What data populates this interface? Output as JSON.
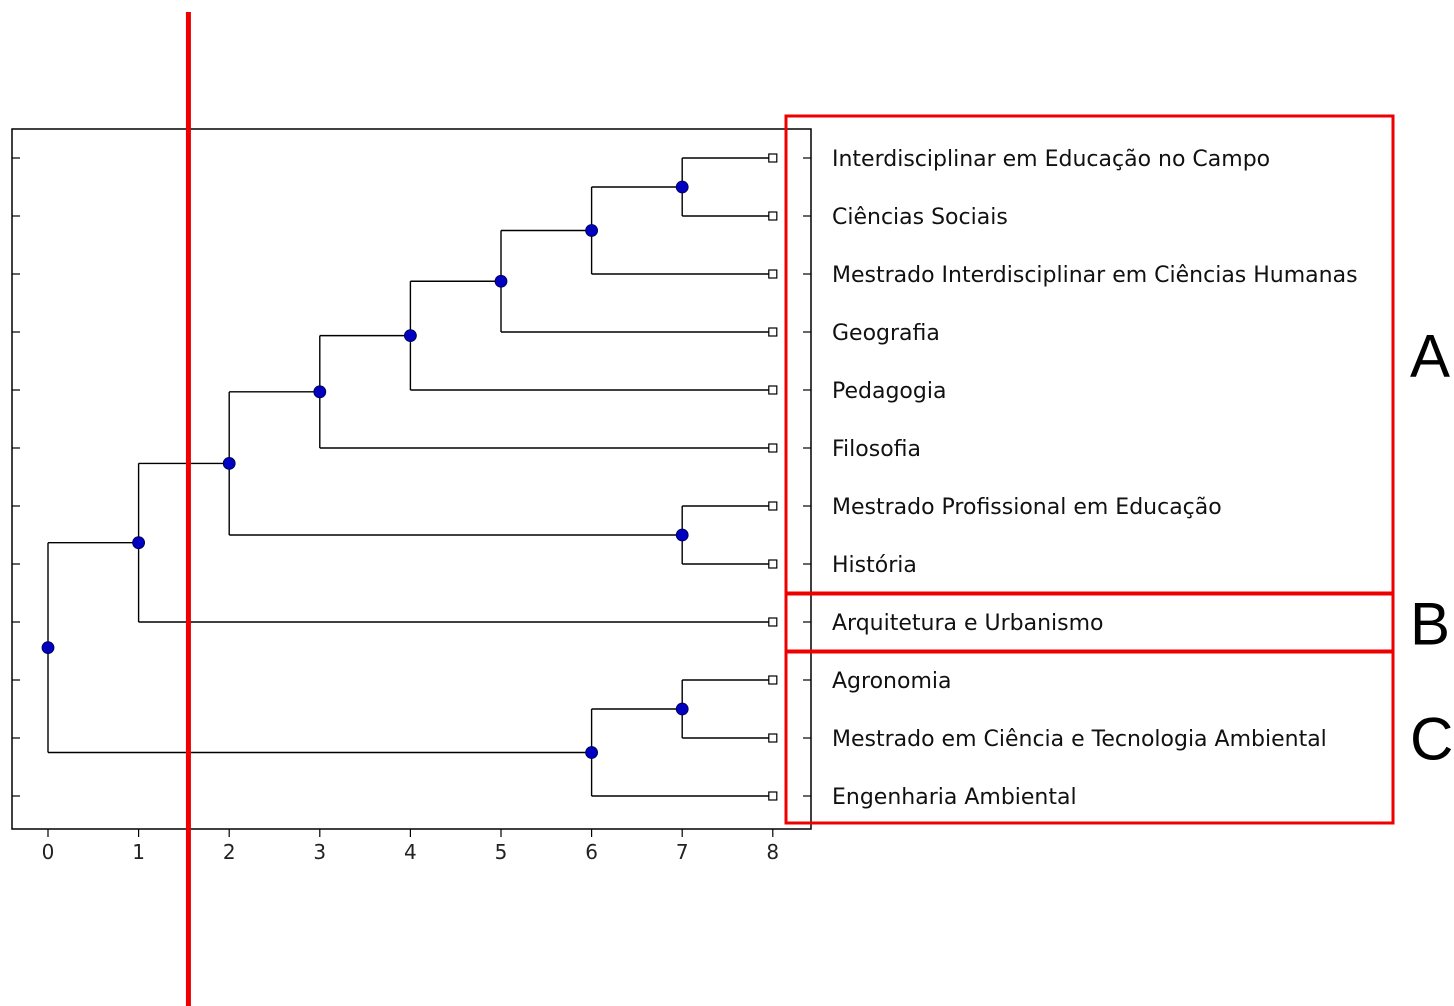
{
  "chart_data": {
    "type": "dendrogram",
    "x_ticks": [
      "0",
      "1",
      "2",
      "3",
      "4",
      "5",
      "6",
      "7",
      "8"
    ],
    "xlim": [
      0,
      8
    ],
    "leaves": [
      "Interdisciplinar em Educação no Campo",
      "Ciências Sociais",
      "Mestrado Interdisciplinar em Ciências Humanas",
      "Geografia",
      "Pedagogia",
      "Filosofia",
      "Mestrado Profissional em Educação",
      "História",
      "Arquitetura e Urbanismo",
      "Agronomia",
      "Mestrado em Ciência e Tecnologia Ambiental",
      "Engenharia Ambiental"
    ],
    "merges": [
      {
        "height": 7,
        "left": 0,
        "right": 1
      },
      {
        "height": 6,
        "left": 12,
        "right": 2
      },
      {
        "height": 5,
        "left": 13,
        "right": 3
      },
      {
        "height": 4,
        "left": 14,
        "right": 4
      },
      {
        "height": 3,
        "left": 15,
        "right": 5
      },
      {
        "height": 7,
        "left": 6,
        "right": 7
      },
      {
        "height": 2,
        "left": 16,
        "right": 17
      },
      {
        "height": 1,
        "left": 18,
        "right": 8
      },
      {
        "height": 7,
        "left": 9,
        "right": 10
      },
      {
        "height": 6,
        "left": 20,
        "right": 11
      },
      {
        "height": 0,
        "left": 19,
        "right": 21
      }
    ],
    "cut_line_x": 1.55,
    "groups": [
      {
        "label": "A",
        "from_leaf": 0,
        "to_leaf": 7
      },
      {
        "label": "B",
        "from_leaf": 8,
        "to_leaf": 8
      },
      {
        "label": "C",
        "from_leaf": 9,
        "to_leaf": 11
      }
    ]
  },
  "colors": {
    "node": "#0000c0",
    "line": "#000000",
    "highlight": "#ee0000"
  }
}
